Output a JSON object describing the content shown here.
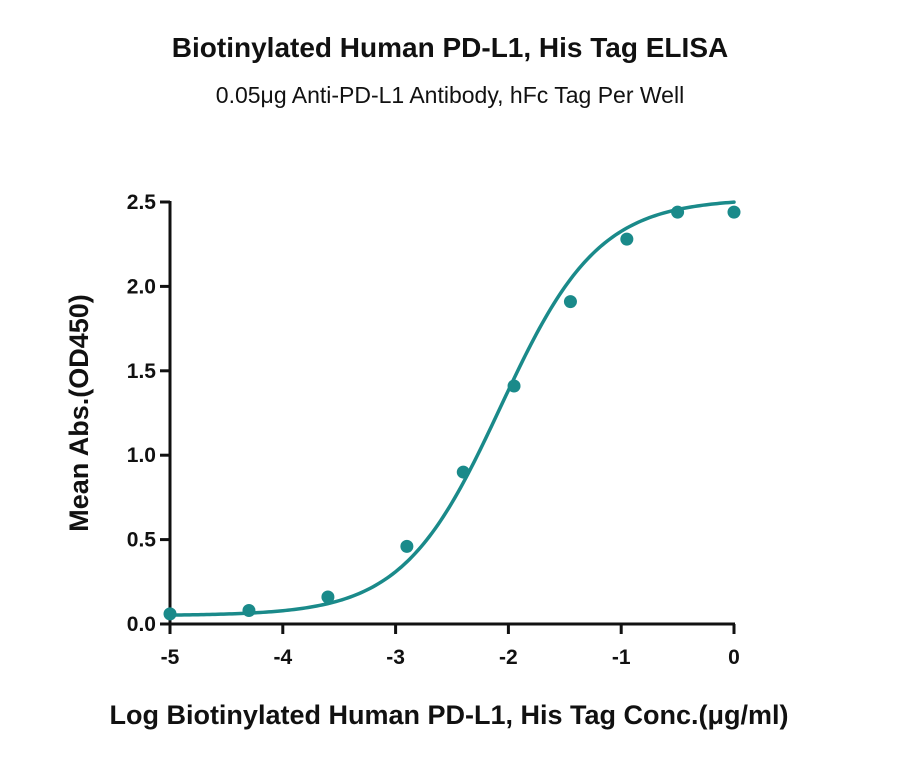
{
  "chart_data": {
    "type": "scatter",
    "title": "Biotinylated Human PD-L1, His Tag ELISA",
    "subtitle": "0.05μg Anti-PD-L1 Antibody, hFc Tag Per Well",
    "xlabel": "Log Biotinylated Human PD-L1, His Tag Conc.(μg/ml)",
    "ylabel": "Mean Abs.(OD450)",
    "xlim": [
      -5,
      0
    ],
    "ylim": [
      0,
      2.5
    ],
    "x_ticks": [
      -5,
      -4,
      -3,
      -2,
      -1,
      0
    ],
    "x_tick_labels": [
      "-5",
      "-4",
      "-3",
      "-2",
      "-1",
      "0"
    ],
    "y_ticks": [
      0,
      0.5,
      1.0,
      1.5,
      2.0,
      2.5
    ],
    "y_tick_labels": [
      "0.0",
      "0.5",
      "1.0",
      "1.5",
      "2.0",
      "2.5"
    ],
    "grid": false,
    "legend": "none",
    "color": "#1a8a8a",
    "series": [
      {
        "x": [
          -5.0,
          -4.3,
          -3.6,
          -2.9,
          -2.4,
          -1.95,
          -1.45,
          -0.95,
          -0.5,
          0.0
        ],
        "y": [
          0.06,
          0.08,
          0.16,
          0.46,
          0.9,
          1.41,
          1.91,
          2.28,
          2.44,
          2.44
        ]
      }
    ],
    "fit_curve": {
      "model": "4PL",
      "bottom": 0.05,
      "top": 2.52,
      "logEC50": -2.07,
      "hill": 1.0
    }
  }
}
